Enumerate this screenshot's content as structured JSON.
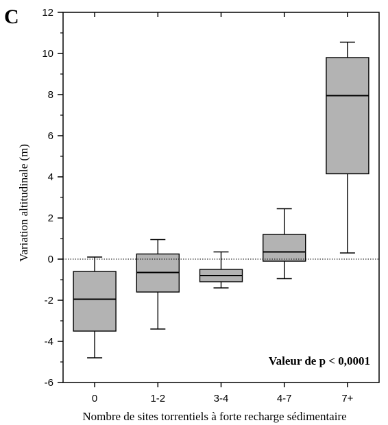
{
  "chart_data": {
    "type": "boxplot",
    "panel_label": "C",
    "title": "",
    "xlabel": "Nombre de sites torrentiels à forte recharge sédimentaire",
    "ylabel": "Variation altitudinale (m)",
    "annotation": "Valeur de p < 0,0001",
    "ylim": [
      -6,
      12
    ],
    "yticks": [
      -6,
      -4,
      -2,
      0,
      2,
      4,
      6,
      8,
      10,
      12
    ],
    "reference_line": 0,
    "categories": [
      "0",
      "1-2",
      "3-4",
      "4-7",
      "7+"
    ],
    "boxes": [
      {
        "category": "0",
        "min": -4.8,
        "q1": -3.5,
        "median": -1.95,
        "q3": -0.6,
        "max": 0.1
      },
      {
        "category": "1-2",
        "min": -3.4,
        "q1": -1.6,
        "median": -0.65,
        "q3": 0.25,
        "max": 0.95
      },
      {
        "category": "3-4",
        "min": -1.4,
        "q1": -1.1,
        "median": -0.8,
        "q3": -0.5,
        "max": 0.35
      },
      {
        "category": "4-7",
        "min": -0.95,
        "q1": -0.1,
        "median": 0.35,
        "q3": 1.2,
        "max": 2.45
      },
      {
        "category": "7+",
        "min": 0.3,
        "q1": 4.15,
        "median": 7.95,
        "q3": 9.8,
        "max": 10.55
      }
    ],
    "box_fill": "#b3b3b3",
    "grid": false
  }
}
